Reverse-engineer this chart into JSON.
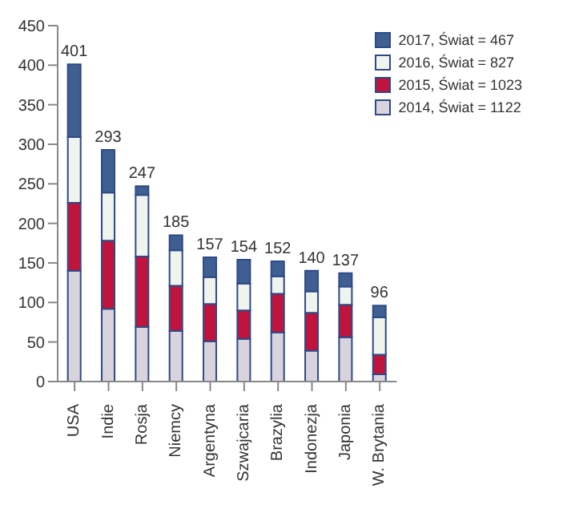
{
  "chart_data": {
    "type": "bar",
    "stacked": true,
    "categories": [
      "USA",
      "Indie",
      "Rosja",
      "Niemcy",
      "Argentyna",
      "Szwajcaria",
      "Brazylia",
      "Indonezja",
      "Japonia",
      "W. Brytania"
    ],
    "series": [
      {
        "name": "2014, Świat = 1122",
        "color": "#d9d3de",
        "values": [
          140,
          92,
          69,
          64,
          51,
          54,
          62,
          39,
          56,
          9
        ]
      },
      {
        "name": "2015, Świat = 1023",
        "color": "#c0143c",
        "values": [
          86,
          86,
          89,
          57,
          47,
          36,
          49,
          48,
          41,
          25
        ]
      },
      {
        "name": "2016, Świat = 827",
        "color": "#f0f4ee",
        "values": [
          83,
          61,
          78,
          45,
          34,
          34,
          22,
          27,
          23,
          47
        ]
      },
      {
        "name": "2017, Świat = 467",
        "color": "#3f5f93",
        "values": [
          92,
          54,
          11,
          19,
          25,
          30,
          19,
          26,
          17,
          15
        ]
      }
    ],
    "totals": [
      "401",
      "293",
      "247",
      "185",
      "157",
      "154",
      "152",
      "140",
      "137",
      "96"
    ],
    "ylim": [
      0,
      450
    ],
    "yticks": [
      0,
      50,
      100,
      150,
      200,
      250,
      300,
      350,
      400,
      450
    ],
    "legend": "top right"
  }
}
